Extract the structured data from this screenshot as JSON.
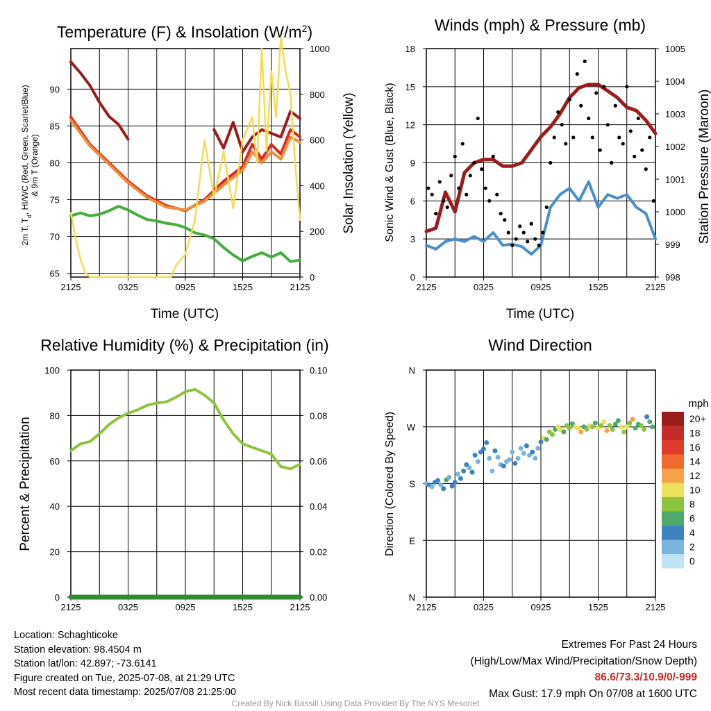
{
  "chart_data": [
    {
      "type": "line",
      "title": "Temperature (F) & Insolation (W/m",
      "title_sup": "2",
      "title_end": ")",
      "xlabel": "Time (UTC)",
      "ylabel_lines": [
        "2m T, T",
        "d",
        ", HI/WC (Red, Green, Scarlet/Blue)",
        "& 9m T (Orange)"
      ],
      "ylabel_right": "Solar Insolation (Yellow)",
      "x_ticks": [
        "2125",
        "0325",
        "0925",
        "1525",
        "2125"
      ],
      "ylim": [
        64.5,
        95.5
      ],
      "y_ticks": [
        65,
        70,
        75,
        80,
        85,
        90
      ],
      "y2lim": [
        0,
        1000
      ],
      "y2_ticks": [
        0,
        200,
        400,
        600,
        800,
        1000
      ],
      "grid": true,
      "series": [
        {
          "color": "#d72c1e",
          "axis": "left",
          "x": [
            0,
            2,
            4,
            6,
            8,
            10,
            12,
            14,
            16,
            18,
            19,
            20,
            21,
            22,
            23,
            24
          ],
          "values": [
            86.2,
            82.5,
            80,
            77.5,
            75.5,
            74.2,
            73.5,
            75,
            77.5,
            79.5,
            82.5,
            80.5,
            82.5,
            81.2,
            84.5,
            83.5
          ]
        },
        {
          "color": "#f28c38",
          "axis": "left",
          "x": [
            0,
            2,
            4,
            6,
            8,
            10,
            12,
            14,
            16,
            18,
            19,
            20,
            21,
            22,
            23,
            24
          ],
          "values": [
            85.8,
            82.3,
            79.8,
            77.3,
            75.3,
            74,
            73.6,
            74.8,
            77,
            79,
            81.5,
            80,
            81.5,
            80.5,
            83.5,
            82.8
          ]
        },
        {
          "color": "#45ad3e",
          "axis": "left",
          "x": [
            0,
            1,
            2,
            3,
            4,
            5,
            6,
            7,
            8,
            9,
            10,
            11,
            12,
            13,
            14,
            15,
            16,
            17,
            18,
            19,
            20,
            21,
            22,
            23,
            24
          ],
          "values": [
            72.8,
            73.2,
            72.8,
            73,
            73.5,
            74.1,
            73.6,
            72.9,
            72.3,
            72.1,
            71.8,
            71.6,
            71.2,
            70.5,
            70.2,
            69.7,
            68.5,
            67.5,
            66.7,
            67.3,
            67.8,
            67.2,
            67.8,
            66.6,
            66.8
          ]
        },
        {
          "color": "#9b1c1c",
          "axis": "left",
          "x": [
            0,
            1,
            2,
            3,
            4,
            5,
            6
          ],
          "values": [
            93.7,
            92.2,
            90.5,
            88.2,
            86.3,
            85.2,
            83.2
          ]
        },
        {
          "color": "#9b1c1c",
          "axis": "left",
          "x": [
            15,
            16,
            17,
            18,
            19,
            20,
            21,
            22,
            23,
            24
          ],
          "values": [
            84.5,
            82,
            85.5,
            81.5,
            83.5,
            84.5,
            84,
            83.5,
            87,
            86
          ]
        },
        {
          "color": "#f2dc55",
          "axis": "right",
          "x": [
            0,
            0.5,
            1,
            1.5,
            2,
            3,
            5,
            8,
            10.5,
            11,
            12,
            13,
            14,
            15,
            16,
            17,
            18,
            19,
            19.5,
            20,
            20.5,
            21,
            21.5,
            22,
            22.5,
            23,
            23.5,
            24
          ],
          "values": [
            280,
            170,
            80,
            20,
            0,
            0,
            0,
            0,
            0,
            50,
            100,
            250,
            600,
            350,
            550,
            300,
            600,
            700,
            500,
            1000,
            550,
            900,
            700,
            1050,
            900,
            800,
            500,
            250
          ]
        }
      ]
    },
    {
      "type": "scatter",
      "title": "Winds (mph) & Pressure (mb)",
      "xlabel": "Time (UTC)",
      "ylabel": "Sonic Wind & Gust (Blue, Black)",
      "ylabel_right": "Station Pressure (Maroon)",
      "x_ticks": [
        "2125",
        "0325",
        "0925",
        "1525",
        "2125"
      ],
      "ylim": [
        0,
        18
      ],
      "y_ticks": [
        0,
        3,
        6,
        9,
        12,
        15,
        18
      ],
      "y2lim": [
        998,
        1005
      ],
      "y2_ticks": [
        998,
        999,
        1000,
        1001,
        1002,
        1003,
        1004,
        1005
      ],
      "grid": true,
      "series": [
        {
          "color": "#4a8fcb",
          "kind": "line",
          "axis": "left",
          "x": [
            0,
            1,
            2,
            3,
            4,
            5,
            6,
            7,
            8,
            9,
            10,
            11,
            12,
            13,
            14,
            15,
            16,
            17,
            18,
            19,
            20,
            21,
            22,
            23,
            24
          ],
          "values": [
            2.5,
            2.2,
            2.8,
            3,
            2.8,
            3.2,
            2.8,
            3.5,
            2.5,
            2.6,
            2.4,
            1.8,
            2.5,
            5.5,
            6.5,
            7,
            6,
            7.5,
            5.5,
            6.5,
            6.2,
            6.5,
            5.5,
            5,
            3
          ]
        },
        {
          "color": "#9b1c1c",
          "kind": "line",
          "axis": "right",
          "x": [
            0,
            1,
            2,
            3,
            4,
            5,
            6,
            7,
            8,
            9,
            10,
            11,
            12,
            13,
            14,
            15,
            16,
            17,
            18,
            19,
            20,
            21,
            22,
            23,
            24
          ],
          "values": [
            999.4,
            999.5,
            1000.6,
            1000,
            1001.2,
            1001.5,
            1001.6,
            1001.6,
            1001.4,
            1001.4,
            1001.5,
            1001.9,
            1002.3,
            1002.6,
            1003,
            1003.5,
            1003.8,
            1003.9,
            1003.9,
            1003.7,
            1003.5,
            1003.2,
            1003.1,
            1002.8,
            1002.4
          ]
        },
        {
          "color": "#000000",
          "kind": "points",
          "axis": "left",
          "x": [
            0.2,
            0.6,
            1,
            1.4,
            1.8,
            2.2,
            2.6,
            3,
            3.4,
            3.8,
            4.2,
            4.6,
            5,
            5.4,
            5.8,
            6.2,
            6.6,
            7,
            7.4,
            7.8,
            8.2,
            8.6,
            9,
            9.4,
            9.8,
            10.2,
            10.6,
            11,
            11.4,
            11.8,
            12.2,
            12.6,
            13,
            13.4,
            13.8,
            14.2,
            14.6,
            15,
            15.4,
            15.8,
            16.2,
            16.6,
            17,
            17.4,
            17.8,
            18.2,
            18.6,
            19,
            19.4,
            19.8,
            20.2,
            20.6,
            21,
            21.4,
            21.8,
            22.2,
            22.6,
            23,
            23.4,
            23.8
          ],
          "values": [
            7,
            6.5,
            5,
            7.5,
            6,
            5.5,
            8,
            9.5,
            7,
            10.5,
            6.5,
            8,
            9,
            12.5,
            8.5,
            7,
            6,
            9.5,
            6.5,
            5,
            4.5,
            3.5,
            2.5,
            3,
            4,
            3.5,
            2.8,
            4.2,
            3,
            2.5,
            3.5,
            5.5,
            9,
            11,
            13,
            12,
            10.5,
            14,
            11,
            16,
            13.5,
            17,
            12.5,
            11,
            14.5,
            10,
            15,
            12,
            9,
            13.5,
            11,
            10.5,
            15,
            11.5,
            9.5,
            12.5,
            10,
            8.5,
            11,
            6
          ]
        }
      ]
    },
    {
      "type": "line",
      "title": "Relative Humidity (%) & Precipitation (in)",
      "xlabel": "",
      "ylabel": "Percent & Precipitation",
      "x_ticks": [
        "2125",
        "0325",
        "0925",
        "1525",
        "2125"
      ],
      "ylim": [
        0,
        100
      ],
      "y_ticks": [
        0,
        20,
        40,
        60,
        80,
        100
      ],
      "y2lim": [
        0,
        0.1
      ],
      "y2_ticks": [
        "0.00",
        "0.02",
        "0.04",
        "0.06",
        "0.08",
        "0.10"
      ],
      "grid": true,
      "series": [
        {
          "color": "#8cc43f",
          "axis": "left",
          "x": [
            0,
            1,
            2,
            3,
            4,
            5,
            6,
            7,
            8,
            9,
            10,
            11,
            12,
            13,
            14,
            15,
            16,
            17,
            18,
            19,
            20,
            21,
            22,
            23,
            24
          ],
          "values": [
            64.5,
            67.5,
            68.5,
            72,
            76,
            79,
            81,
            82.5,
            84.5,
            85.5,
            86,
            88,
            90.5,
            91.5,
            89,
            85.5,
            78,
            72,
            67.5,
            66,
            64.5,
            63,
            57.5,
            56.5,
            58.5
          ]
        },
        {
          "color": "#2e8b2e",
          "axis": "right",
          "x": [
            0,
            24
          ],
          "values": [
            0,
            0
          ]
        }
      ]
    },
    {
      "type": "scatter",
      "title": "Wind Direction",
      "xlabel": "",
      "ylabel": "Direction (Colored By Speed)",
      "x_ticks": [
        "2125",
        "0325",
        "0925",
        "1525",
        "2125"
      ],
      "y_ticks": [
        "N",
        "E",
        "S",
        "W",
        "N"
      ],
      "ylim": [
        0,
        360
      ],
      "grid": true,
      "legend": {
        "title": "mph",
        "labels": [
          "20+",
          "18",
          "16",
          "14",
          "12",
          "10",
          "8",
          "6",
          "4",
          "2",
          "0"
        ],
        "colors": [
          "#9b1c1c",
          "#c52b2b",
          "#e03b2b",
          "#ef6a2c",
          "#f6a24a",
          "#ece15a",
          "#8cc43f",
          "#4ea96a",
          "#3f82c0",
          "#7ab5df",
          "#bde3f5"
        ]
      },
      "points": {
        "x": [
          0,
          0.3,
          0.6,
          0.9,
          1.2,
          1.5,
          1.8,
          2.1,
          2.4,
          2.7,
          3,
          3.3,
          3.6,
          3.9,
          4.2,
          4.5,
          4.8,
          5.1,
          5.4,
          5.7,
          6,
          6.3,
          6.6,
          6.9,
          7.2,
          7.5,
          7.8,
          8.1,
          8.4,
          8.7,
          9,
          9.3,
          9.6,
          9.9,
          10.2,
          10.5,
          10.8,
          11.1,
          11.4,
          11.7,
          12,
          12.3,
          12.6,
          12.9,
          13.2,
          13.5,
          13.8,
          14.1,
          14.4,
          14.7,
          15,
          15.3,
          15.6,
          15.9,
          16.2,
          16.5,
          16.8,
          17.1,
          17.4,
          17.7,
          18,
          18.3,
          18.6,
          18.9,
          19.2,
          19.5,
          19.8,
          20.1,
          20.4,
          20.7,
          21,
          21.3,
          21.6,
          21.9,
          22.2,
          22.5,
          22.8,
          23.1,
          23.4,
          23.7
        ],
        "dir": [
          180,
          178,
          175,
          182,
          185,
          178,
          172,
          186,
          190,
          176,
          182,
          195,
          188,
          200,
          210,
          205,
          198,
          225,
          215,
          230,
          235,
          245,
          220,
          200,
          232,
          222,
          210,
          208,
          215,
          218,
          230,
          212,
          220,
          236,
          228,
          240,
          225,
          230,
          220,
          236,
          246,
          252,
          250,
          262,
          258,
          266,
          270,
          265,
          262,
          272,
          268,
          275,
          270,
          268,
          262,
          270,
          266,
          272,
          270,
          276,
          268,
          272,
          278,
          264,
          272,
          266,
          274,
          280,
          270,
          262,
          270,
          276,
          282,
          268,
          274,
          272,
          266,
          286,
          278,
          270
        ],
        "speed": [
          2,
          3,
          2,
          4,
          3,
          2,
          3,
          5,
          2,
          3,
          4,
          2,
          3,
          4,
          3,
          2,
          3,
          4,
          2,
          3,
          4,
          3,
          1,
          2,
          3,
          1,
          2,
          3,
          2,
          2,
          1,
          3,
          2,
          1,
          2,
          3,
          2,
          3,
          1,
          2,
          4,
          9,
          6,
          8,
          7,
          6,
          9,
          10,
          6,
          8,
          7,
          5,
          9,
          10,
          11,
          6,
          8,
          9,
          7,
          6,
          10,
          8,
          9,
          11,
          7,
          8,
          6,
          5,
          10,
          7,
          9,
          8,
          11,
          6,
          5,
          7,
          8,
          4,
          6,
          5
        ]
      }
    }
  ],
  "info": {
    "location": "Location: Schaghticoke",
    "elevation": "Station elevation: 98.4504 m",
    "latlon": "Station lat/lon: 42.897; -73.6141",
    "created": "Figure created on Tue, 2025-07-08, at 21:29 UTC",
    "recent": "Most recent data timestamp: 2025/07/08 21:25:00"
  },
  "extremes": {
    "title": "Extremes For Past 24 Hours",
    "subtitle": "(High/Low/Max Wind/Precipitation/Snow Depth)",
    "values": "86.6/73.3/10.9/0/-999",
    "gust": "Max Gust: 17.9 mph On 07/08 at 1600 UTC"
  },
  "credit": "Created By Nick Bassill Using Data Provided By The NYS Mesonet"
}
